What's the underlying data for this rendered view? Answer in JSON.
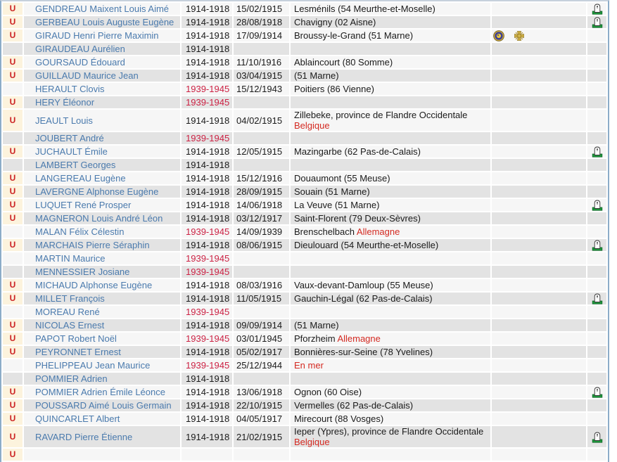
{
  "colors": {
    "link_blue": "#4a7aad",
    "war_red": "#cc2244",
    "country_red": "#d42a22",
    "u_red": "#cc2222",
    "u_cell_bg": "#fcf3dd",
    "row_light": "#f6f6f6",
    "row_dark": "#e3e3e3",
    "table_border_blue": "#8cacc8",
    "gravestone_green": "#1f9a3d",
    "medal_navy": "#3b3f96",
    "medal_gold": "#c9a93f"
  },
  "table": {
    "u_label": "U",
    "rows": [
      {
        "u": true,
        "name": "GENDREAU Maixent Louis Aimé",
        "war": "1914-1918",
        "date": "15/02/1915",
        "place": "Lesménils (54 Meurthe-et-Moselle)",
        "country": "",
        "country_newline": false,
        "medals": [],
        "grave_photo": true
      },
      {
        "u": true,
        "name": "GERBEAU Louis Auguste Eugène",
        "war": "1914-1918",
        "date": "28/08/1918",
        "place": "Chavigny (02 Aisne)",
        "country": "",
        "country_newline": false,
        "medals": [],
        "grave_photo": true
      },
      {
        "u": true,
        "name": "GIRAUD Henri Pierre Maximin",
        "war": "1914-1918",
        "date": "17/09/1914",
        "place": "Broussy-le-Grand (51 Marne)",
        "country": "",
        "country_newline": false,
        "medals": [
          "medaille-militaire",
          "croix-de-guerre"
        ],
        "grave_photo": false
      },
      {
        "u": false,
        "name": "GIRAUDEAU Aurélien",
        "war": "1914-1918",
        "date": "",
        "place": "",
        "country": "",
        "country_newline": false,
        "medals": [],
        "grave_photo": false
      },
      {
        "u": true,
        "name": "GOURSAUD Édouard",
        "war": "1914-1918",
        "date": "11/10/1916",
        "place": "Ablaincourt (80 Somme)",
        "country": "",
        "country_newline": false,
        "medals": [],
        "grave_photo": false
      },
      {
        "u": true,
        "name": "GUILLAUD Maurice Jean",
        "war": "1914-1918",
        "date": "03/04/1915",
        "place": "(51 Marne)",
        "country": "",
        "country_newline": false,
        "medals": [],
        "grave_photo": false
      },
      {
        "u": false,
        "name": "HERAULT Clovis",
        "war": "1939-1945",
        "date": "15/12/1943",
        "place": "Poitiers (86 Vienne)",
        "country": "",
        "country_newline": false,
        "medals": [],
        "grave_photo": false
      },
      {
        "u": true,
        "name": "HERY Éléonor",
        "war": "1939-1945",
        "date": "",
        "place": "",
        "country": "",
        "country_newline": false,
        "medals": [],
        "grave_photo": false
      },
      {
        "u": true,
        "name": "JEAULT Louis",
        "war": "1914-1918",
        "date": "04/02/1915",
        "place": "Zillebeke, province de Flandre Occidentale",
        "country": "Belgique",
        "country_newline": true,
        "medals": [],
        "grave_photo": false
      },
      {
        "u": false,
        "name": "JOUBERT André",
        "war": "1939-1945",
        "date": "",
        "place": "",
        "country": "",
        "country_newline": false,
        "medals": [],
        "grave_photo": false
      },
      {
        "u": true,
        "name": "JUCHAULT Émile",
        "war": "1914-1918",
        "date": "12/05/1915",
        "place": "Mazingarbe (62 Pas-de-Calais)",
        "country": "",
        "country_newline": false,
        "medals": [],
        "grave_photo": true
      },
      {
        "u": false,
        "name": "LAMBERT Georges",
        "war": "1914-1918",
        "date": "",
        "place": "",
        "country": "",
        "country_newline": false,
        "medals": [],
        "grave_photo": false
      },
      {
        "u": true,
        "name": "LANGEREAU Eugène",
        "war": "1914-1918",
        "date": "15/12/1916",
        "place": "Douaumont (55 Meuse)",
        "country": "",
        "country_newline": false,
        "medals": [],
        "grave_photo": false
      },
      {
        "u": true,
        "name": "LAVERGNE Alphonse Eugène",
        "war": "1914-1918",
        "date": "28/09/1915",
        "place": "Souain (51 Marne)",
        "country": "",
        "country_newline": false,
        "medals": [],
        "grave_photo": false
      },
      {
        "u": true,
        "name": "LUQUET René Prosper",
        "war": "1914-1918",
        "date": "14/06/1918",
        "place": "La Veuve (51 Marne)",
        "country": "",
        "country_newline": false,
        "medals": [],
        "grave_photo": true
      },
      {
        "u": true,
        "name": "MAGNERON Louis André Léon",
        "war": "1914-1918",
        "date": "03/12/1917",
        "place": "Saint-Florent (79 Deux-Sèvres)",
        "country": "",
        "country_newline": false,
        "medals": [],
        "grave_photo": false
      },
      {
        "u": false,
        "name": "MALAN Félix Célestin",
        "war": "1939-1945",
        "date": "14/09/1939",
        "place": "Brenschelbach",
        "country": "Allemagne",
        "country_newline": false,
        "medals": [],
        "grave_photo": false
      },
      {
        "u": true,
        "name": "MARCHAIS Pierre Séraphin",
        "war": "1914-1918",
        "date": "08/06/1915",
        "place": "Dieulouard (54 Meurthe-et-Moselle)",
        "country": "",
        "country_newline": false,
        "medals": [],
        "grave_photo": true
      },
      {
        "u": false,
        "name": "MARTIN Maurice",
        "war": "1939-1945",
        "date": "",
        "place": "",
        "country": "",
        "country_newline": false,
        "medals": [],
        "grave_photo": false
      },
      {
        "u": false,
        "name": "MENNESSIER Josiane",
        "war": "1939-1945",
        "date": "",
        "place": "",
        "country": "",
        "country_newline": false,
        "medals": [],
        "grave_photo": false
      },
      {
        "u": true,
        "name": "MICHAUD Alphonse Eugène",
        "war": "1914-1918",
        "date": "08/03/1916",
        "place": "Vaux-devant-Damloup (55 Meuse)",
        "country": "",
        "country_newline": false,
        "medals": [],
        "grave_photo": false
      },
      {
        "u": true,
        "name": "MILLET François",
        "war": "1914-1918",
        "date": "11/05/1915",
        "place": "Gauchin-Légal (62 Pas-de-Calais)",
        "country": "",
        "country_newline": false,
        "medals": [],
        "grave_photo": true
      },
      {
        "u": false,
        "name": "MOREAU René",
        "war": "1939-1945",
        "date": "",
        "place": "",
        "country": "",
        "country_newline": false,
        "medals": [],
        "grave_photo": false
      },
      {
        "u": true,
        "name": "NICOLAS Ernest",
        "war": "1914-1918",
        "date": "09/09/1914",
        "place": "(51 Marne)",
        "country": "",
        "country_newline": false,
        "medals": [],
        "grave_photo": false
      },
      {
        "u": true,
        "name": "PAPOT Robert Noël",
        "war": "1939-1945",
        "date": "03/01/1945",
        "place": "Pforzheim",
        "country": "Allemagne",
        "country_newline": false,
        "medals": [],
        "grave_photo": false
      },
      {
        "u": true,
        "name": "PEYRONNET Ernest",
        "war": "1914-1918",
        "date": "05/02/1917",
        "place": "Bonnières-sur-Seine (78 Yvelines)",
        "country": "",
        "country_newline": false,
        "medals": [],
        "grave_photo": false
      },
      {
        "u": false,
        "name": "PHELIPPEAU Jean Maurice",
        "war": "1939-1945",
        "date": "25/12/1944",
        "place": "",
        "country": "En mer",
        "country_newline": false,
        "medals": [],
        "grave_photo": false
      },
      {
        "u": false,
        "name": "POMMIER Adrien",
        "war": "1914-1918",
        "date": "",
        "place": "",
        "country": "",
        "country_newline": false,
        "medals": [],
        "grave_photo": false
      },
      {
        "u": true,
        "name": "POMMIER Adrien Émile Léonce",
        "war": "1914-1918",
        "date": "13/06/1918",
        "place": "Ognon (60 Oise)",
        "country": "",
        "country_newline": false,
        "medals": [],
        "grave_photo": true
      },
      {
        "u": true,
        "name": "POUSSARD Aimé Louis Germain",
        "war": "1914-1918",
        "date": "22/10/1915",
        "place": "Vermelles (62 Pas-de-Calais)",
        "country": "",
        "country_newline": false,
        "medals": [],
        "grave_photo": false
      },
      {
        "u": true,
        "name": "QUINCARLET Albert",
        "war": "1914-1918",
        "date": "04/05/1917",
        "place": "Mirecourt (88 Vosges)",
        "country": "",
        "country_newline": false,
        "medals": [],
        "grave_photo": false
      },
      {
        "u": true,
        "name": "RAVARD Pierre Étienne",
        "war": "1914-1918",
        "date": "21/02/1915",
        "place": "Ieper (Ypres), province de Flandre Occidentale",
        "country": "Belgique",
        "country_newline": true,
        "medals": [],
        "grave_photo": true
      },
      {
        "u": true,
        "name": "",
        "war": "",
        "date": "",
        "place": "",
        "country": "",
        "country_newline": false,
        "medals": [],
        "grave_photo": false
      }
    ]
  }
}
